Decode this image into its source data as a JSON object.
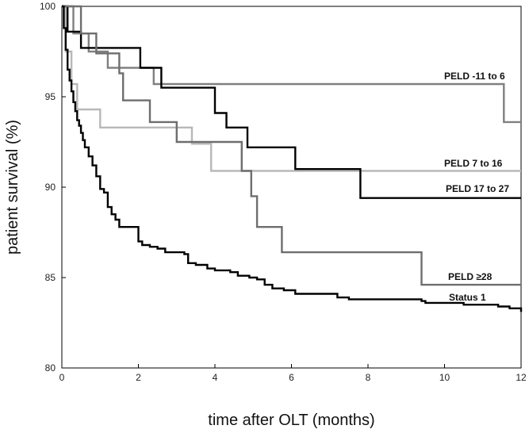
{
  "chart_data": {
    "type": "line",
    "title": "",
    "xlabel": "time after OLT (months)",
    "ylabel": "patient survival (%)",
    "xlim": [
      0,
      12
    ],
    "ylim": [
      80,
      100
    ],
    "xticks": [
      "0",
      "2",
      "4",
      "6",
      "8",
      "10",
      "12"
    ],
    "yticks": [
      "80",
      "85",
      "90",
      "95",
      "100"
    ],
    "grid": false,
    "legend": "inline labels at right",
    "series": [
      {
        "name": "PELD -11 to 6",
        "color": "#808080",
        "points": [
          [
            0,
            100
          ],
          [
            0.3,
            100
          ],
          [
            0.3,
            98.5
          ],
          [
            0.7,
            98.5
          ],
          [
            0.7,
            97.5
          ],
          [
            1.2,
            97.5
          ],
          [
            1.2,
            96.6
          ],
          [
            2.4,
            96.6
          ],
          [
            2.4,
            95.7
          ],
          [
            11.55,
            95.7
          ],
          [
            11.55,
            93.6
          ],
          [
            12,
            93.6
          ]
        ]
      },
      {
        "name": "PELD 7 to 16",
        "color": "#b8b8b8",
        "points": [
          [
            0,
            100
          ],
          [
            0.1,
            100
          ],
          [
            0.1,
            97.5
          ],
          [
            0.25,
            97.5
          ],
          [
            0.25,
            95.7
          ],
          [
            0.4,
            95.7
          ],
          [
            0.4,
            94.3
          ],
          [
            1.0,
            94.3
          ],
          [
            1.0,
            93.3
          ],
          [
            3.4,
            93.3
          ],
          [
            3.4,
            92.4
          ],
          [
            3.9,
            92.4
          ],
          [
            3.9,
            90.9
          ],
          [
            12,
            90.9
          ]
        ]
      },
      {
        "name": "PELD 17 to 27",
        "color": "#000000",
        "points": [
          [
            0,
            100
          ],
          [
            0.15,
            100
          ],
          [
            0.15,
            98.6
          ],
          [
            0.5,
            98.6
          ],
          [
            0.5,
            97.7
          ],
          [
            2.05,
            97.7
          ],
          [
            2.05,
            96.6
          ],
          [
            2.6,
            96.6
          ],
          [
            2.6,
            95.5
          ],
          [
            4.0,
            95.5
          ],
          [
            4.0,
            94.1
          ],
          [
            4.3,
            94.1
          ],
          [
            4.3,
            93.3
          ],
          [
            4.85,
            93.3
          ],
          [
            4.85,
            92.2
          ],
          [
            6.1,
            92.2
          ],
          [
            6.1,
            91.0
          ],
          [
            7.8,
            91.0
          ],
          [
            7.8,
            89.4
          ],
          [
            12,
            89.4
          ]
        ]
      },
      {
        "name": "PELD ≥28",
        "color": "#6e6e6e",
        "points": [
          [
            0,
            100
          ],
          [
            0.5,
            100
          ],
          [
            0.5,
            98.5
          ],
          [
            0.9,
            98.5
          ],
          [
            0.9,
            97.4
          ],
          [
            1.5,
            97.4
          ],
          [
            1.5,
            96.3
          ],
          [
            1.6,
            96.3
          ],
          [
            1.6,
            94.8
          ],
          [
            2.3,
            94.8
          ],
          [
            2.3,
            93.6
          ],
          [
            3.0,
            93.6
          ],
          [
            3.0,
            92.5
          ],
          [
            4.7,
            92.5
          ],
          [
            4.7,
            90.9
          ],
          [
            4.95,
            90.9
          ],
          [
            4.95,
            89.5
          ],
          [
            5.1,
            89.5
          ],
          [
            5.1,
            87.8
          ],
          [
            5.75,
            87.8
          ],
          [
            5.75,
            86.4
          ],
          [
            9.4,
            86.4
          ],
          [
            9.4,
            84.6
          ],
          [
            12,
            84.6
          ]
        ]
      },
      {
        "name": "Status 1",
        "color": "#000000",
        "points": [
          [
            0,
            100
          ],
          [
            0.05,
            98.8
          ],
          [
            0.1,
            97.6
          ],
          [
            0.15,
            96.5
          ],
          [
            0.2,
            95.9
          ],
          [
            0.25,
            95.3
          ],
          [
            0.3,
            94.7
          ],
          [
            0.35,
            94.2
          ],
          [
            0.4,
            93.7
          ],
          [
            0.45,
            93.4
          ],
          [
            0.5,
            93.0
          ],
          [
            0.55,
            92.6
          ],
          [
            0.6,
            92.2
          ],
          [
            0.7,
            91.7
          ],
          [
            0.8,
            91.2
          ],
          [
            0.9,
            90.6
          ],
          [
            1.0,
            89.9
          ],
          [
            1.1,
            89.7
          ],
          [
            1.2,
            88.9
          ],
          [
            1.3,
            88.5
          ],
          [
            1.4,
            88.2
          ],
          [
            1.5,
            87.8
          ],
          [
            1.9,
            87.8
          ],
          [
            2.0,
            87.0
          ],
          [
            2.1,
            86.8
          ],
          [
            2.3,
            86.7
          ],
          [
            2.5,
            86.6
          ],
          [
            2.7,
            86.4
          ],
          [
            3.2,
            86.3
          ],
          [
            3.3,
            85.8
          ],
          [
            3.5,
            85.7
          ],
          [
            3.8,
            85.5
          ],
          [
            4.0,
            85.4
          ],
          [
            4.4,
            85.3
          ],
          [
            4.6,
            85.1
          ],
          [
            4.9,
            85.0
          ],
          [
            5.1,
            84.9
          ],
          [
            5.3,
            84.6
          ],
          [
            5.5,
            84.4
          ],
          [
            5.8,
            84.3
          ],
          [
            6.1,
            84.1
          ],
          [
            7.0,
            84.1
          ],
          [
            7.2,
            83.9
          ],
          [
            7.5,
            83.8
          ],
          [
            9.4,
            83.7
          ],
          [
            9.5,
            83.6
          ],
          [
            10.5,
            83.5
          ],
          [
            11.4,
            83.4
          ],
          [
            11.7,
            83.3
          ],
          [
            12,
            83.1
          ]
        ]
      }
    ]
  }
}
